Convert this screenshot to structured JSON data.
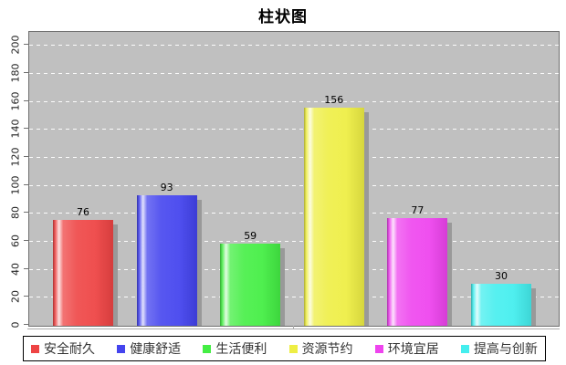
{
  "chart_data": {
    "type": "bar",
    "title": "柱状图",
    "categories": [
      "安全耐久",
      "健康舒适",
      "生活便利",
      "资源节约",
      "环境宜居",
      "提高与创新"
    ],
    "values": [
      76,
      93,
      59,
      156,
      77,
      30
    ],
    "bar_colors": [
      "#ee4444",
      "#4444ee",
      "#44ee44",
      "#eeee44",
      "#ee44ee",
      "#44eeee"
    ],
    "xlabel": "",
    "ylabel": "",
    "ylim": [
      0,
      210
    ],
    "yticks": [
      0,
      20,
      40,
      60,
      80,
      100,
      120,
      140,
      160,
      180,
      200
    ],
    "grid": true,
    "grid_style": "horizontal white dashed",
    "legend_position": "bottom",
    "plot_background": "#c0c0c0",
    "bar_shadow_color": "#999999",
    "value_label_color": "#000000"
  }
}
